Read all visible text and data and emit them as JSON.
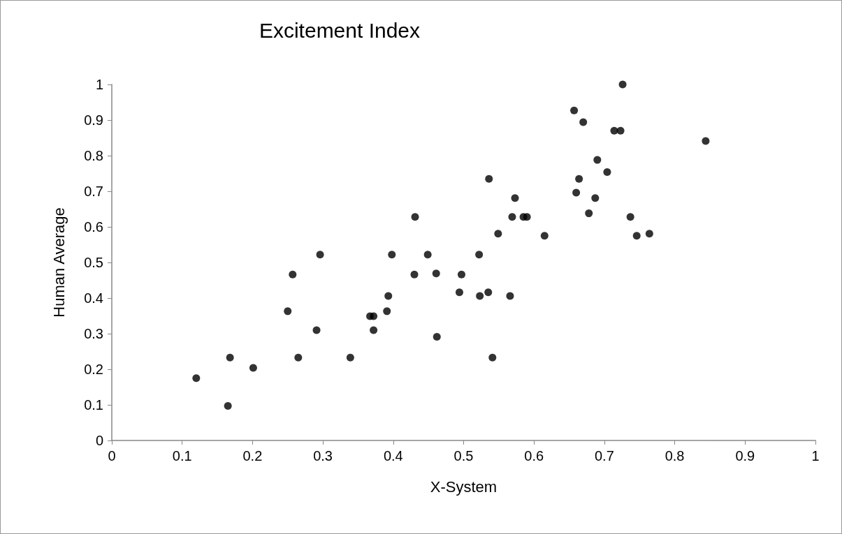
{
  "chart_data": {
    "type": "scatter",
    "title": "Excitement Index",
    "xlabel": "X-System",
    "ylabel": "Human Average",
    "marker": "circle",
    "x": [
      0.12,
      0.165,
      0.168,
      0.201,
      0.25,
      0.257,
      0.265,
      0.291,
      0.296,
      0.339,
      0.367,
      0.372,
      0.372,
      0.391,
      0.393,
      0.398,
      0.43,
      0.431,
      0.449,
      0.461,
      0.462,
      0.494,
      0.497,
      0.522,
      0.523,
      0.535,
      0.536,
      0.541,
      0.549,
      0.566,
      0.569,
      0.573,
      0.585,
      0.59,
      0.615,
      0.657,
      0.66,
      0.664,
      0.67,
      0.678,
      0.687,
      0.69,
      0.704,
      0.714,
      0.723,
      0.726,
      0.737,
      0.746,
      0.764,
      0.844
    ],
    "series": [
      {
        "color": "#000000",
        "values": [
          0.175,
          0.097,
          0.233,
          0.204,
          0.363,
          0.466,
          0.233,
          0.31,
          0.522,
          0.233,
          0.349,
          0.349,
          0.31,
          0.363,
          0.406,
          0.522,
          0.466,
          0.628,
          0.522,
          0.469,
          0.291,
          0.416,
          0.466,
          0.522,
          0.406,
          0.416,
          0.735,
          0.233,
          0.581,
          0.406,
          0.628,
          0.681,
          0.628,
          0.628,
          0.575,
          0.927,
          0.696,
          0.735,
          0.894,
          0.638,
          0.681,
          0.788,
          0.754,
          0.87,
          0.87,
          1.0,
          0.628,
          0.575,
          0.581,
          0.841
        ]
      }
    ],
    "xlim": [
      0,
      1
    ],
    "ylim": [
      0,
      1
    ],
    "xticks": [
      0,
      0.1,
      0.2,
      0.3,
      0.4,
      0.5,
      0.6,
      0.7,
      0.8,
      0.9,
      1
    ],
    "yticks": [
      0,
      0.1,
      0.2,
      0.3,
      0.4,
      0.5,
      0.6,
      0.7,
      0.8,
      0.9,
      1
    ]
  }
}
